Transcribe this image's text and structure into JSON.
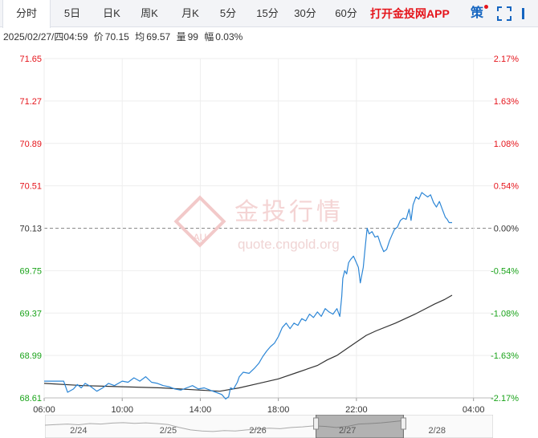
{
  "tabs": [
    {
      "label": "分时",
      "active": true
    },
    {
      "label": "5日",
      "active": false
    },
    {
      "label": "日K",
      "active": false
    },
    {
      "label": "周K",
      "active": false
    },
    {
      "label": "月K",
      "active": false
    },
    {
      "label": "5分",
      "active": false
    },
    {
      "label": "15分",
      "active": false
    },
    {
      "label": "30分",
      "active": false
    },
    {
      "label": "60分",
      "active": false
    }
  ],
  "app_link": "打开金投网APP",
  "strategy_label": "策",
  "info": {
    "datetime": "2025/02/27/四04:59",
    "price_label": "价",
    "price": "70.15",
    "avg_label": "均",
    "avg": "69.57",
    "volume_label": "量",
    "volume": "99",
    "change_label": "幅",
    "change": "0.03%"
  },
  "watermark": {
    "brand": "金投行情",
    "url": "quote.cngold.org",
    "logo_text": "AU"
  },
  "colors": {
    "up": "#e5141b",
    "down": "#1aa31a",
    "price_line": "#2c86d6",
    "avg_line": "#333333",
    "neutral": "#333333"
  },
  "chart_data": {
    "type": "line",
    "base_price": 70.13,
    "ylim": [
      68.61,
      71.65
    ],
    "y_ticks": [
      "71.65",
      "71.27",
      "70.89",
      "70.51",
      "70.13",
      "69.75",
      "69.37",
      "68.99",
      "68.61"
    ],
    "pct_ticks": [
      "2.17%",
      "1.63%",
      "1.08%",
      "0.54%",
      "0.00%",
      "-0.54%",
      "-1.08%",
      "-1.63%",
      "-2.17%"
    ],
    "x_ticks": [
      "06:00",
      "10:00",
      "14:00",
      "18:00",
      "22:00",
      "04:00"
    ],
    "x_tick_hours": [
      0,
      4,
      8,
      12,
      16,
      22
    ],
    "xlim_hours": [
      0,
      23
    ],
    "price_series": [
      [
        0.0,
        68.76
      ],
      [
        1.0,
        68.76
      ],
      [
        1.2,
        68.66
      ],
      [
        1.5,
        68.69
      ],
      [
        1.7,
        68.73
      ],
      [
        1.9,
        68.7
      ],
      [
        2.1,
        68.74
      ],
      [
        2.4,
        68.71
      ],
      [
        2.7,
        68.67
      ],
      [
        3.0,
        68.7
      ],
      [
        3.3,
        68.74
      ],
      [
        3.6,
        68.72
      ],
      [
        4.0,
        68.76
      ],
      [
        4.3,
        68.75
      ],
      [
        4.6,
        68.79
      ],
      [
        4.9,
        68.76
      ],
      [
        5.2,
        68.8
      ],
      [
        5.5,
        68.75
      ],
      [
        5.8,
        68.74
      ],
      [
        6.1,
        68.72
      ],
      [
        6.4,
        68.71
      ],
      [
        6.7,
        68.69
      ],
      [
        7.0,
        68.68
      ],
      [
        7.3,
        68.7
      ],
      [
        7.6,
        68.72
      ],
      [
        7.9,
        68.69
      ],
      [
        8.2,
        68.7
      ],
      [
        8.5,
        68.68
      ],
      [
        8.8,
        68.66
      ],
      [
        9.1,
        68.64
      ],
      [
        9.3,
        68.6
      ],
      [
        9.45,
        68.62
      ],
      [
        9.55,
        68.7
      ],
      [
        9.7,
        68.69
      ],
      [
        9.9,
        68.75
      ],
      [
        10.0,
        68.8
      ],
      [
        10.2,
        68.84
      ],
      [
        10.5,
        68.83
      ],
      [
        10.8,
        68.88
      ],
      [
        11.0,
        68.92
      ],
      [
        11.2,
        68.98
      ],
      [
        11.4,
        69.03
      ],
      [
        11.6,
        69.07
      ],
      [
        11.8,
        69.1
      ],
      [
        12.0,
        69.16
      ],
      [
        12.2,
        69.24
      ],
      [
        12.4,
        69.28
      ],
      [
        12.6,
        69.23
      ],
      [
        12.8,
        69.28
      ],
      [
        13.0,
        69.26
      ],
      [
        13.2,
        69.32
      ],
      [
        13.4,
        69.3
      ],
      [
        13.6,
        69.36
      ],
      [
        13.8,
        69.33
      ],
      [
        14.0,
        69.38
      ],
      [
        14.2,
        69.34
      ],
      [
        14.4,
        69.41
      ],
      [
        14.6,
        69.38
      ],
      [
        14.8,
        69.36
      ],
      [
        15.0,
        69.41
      ],
      [
        15.15,
        69.34
      ],
      [
        15.25,
        69.52
      ],
      [
        15.3,
        69.68
      ],
      [
        15.4,
        69.75
      ],
      [
        15.5,
        69.72
      ],
      [
        15.6,
        69.82
      ],
      [
        15.7,
        69.85
      ],
      [
        15.85,
        69.88
      ],
      [
        16.0,
        69.82
      ],
      [
        16.1,
        69.78
      ],
      [
        16.2,
        69.64
      ],
      [
        16.35,
        69.78
      ],
      [
        16.45,
        69.96
      ],
      [
        16.55,
        70.13
      ],
      [
        16.65,
        70.08
      ],
      [
        16.8,
        70.1
      ],
      [
        16.95,
        70.05
      ],
      [
        17.1,
        70.06
      ],
      [
        17.25,
        69.98
      ],
      [
        17.4,
        69.92
      ],
      [
        17.55,
        69.94
      ],
      [
        17.7,
        70.02
      ],
      [
        17.8,
        70.06
      ],
      [
        17.95,
        70.12
      ],
      [
        18.1,
        70.14
      ],
      [
        18.25,
        70.2
      ],
      [
        18.4,
        70.22
      ],
      [
        18.55,
        70.21
      ],
      [
        18.7,
        70.3
      ],
      [
        18.8,
        70.2
      ],
      [
        18.9,
        70.34
      ],
      [
        19.05,
        70.41
      ],
      [
        19.2,
        70.39
      ],
      [
        19.35,
        70.45
      ],
      [
        19.5,
        70.43
      ],
      [
        19.65,
        70.41
      ],
      [
        19.8,
        70.43
      ],
      [
        19.95,
        70.36
      ],
      [
        20.1,
        70.32
      ],
      [
        20.25,
        70.37
      ],
      [
        20.4,
        70.3
      ],
      [
        20.55,
        70.23
      ],
      [
        20.65,
        70.21
      ],
      [
        20.75,
        70.18
      ],
      [
        20.9,
        70.18
      ]
    ],
    "avg_series": [
      [
        0.0,
        68.74
      ],
      [
        2.0,
        68.72
      ],
      [
        4.0,
        68.71
      ],
      [
        6.0,
        68.7
      ],
      [
        8.0,
        68.68
      ],
      [
        9.0,
        68.67
      ],
      [
        10.0,
        68.7
      ],
      [
        11.0,
        68.74
      ],
      [
        12.0,
        68.78
      ],
      [
        13.0,
        68.84
      ],
      [
        14.0,
        68.9
      ],
      [
        14.5,
        68.95
      ],
      [
        15.0,
        68.99
      ],
      [
        15.5,
        69.05
      ],
      [
        16.0,
        69.11
      ],
      [
        16.5,
        69.17
      ],
      [
        17.0,
        69.21
      ],
      [
        18.0,
        69.28
      ],
      [
        19.0,
        69.36
      ],
      [
        20.0,
        69.45
      ],
      [
        20.5,
        69.49
      ],
      [
        20.9,
        69.53
      ]
    ],
    "navigator": {
      "labels": [
        "2/24",
        "2/25",
        "2/26",
        "2/27",
        "2/28"
      ],
      "label_hours": [
        1.5,
        5.5,
        9.5,
        13.5,
        17.5
      ],
      "selected_range_hours": [
        12.1,
        16.0
      ],
      "xlim_hours": [
        0,
        20
      ],
      "history": [
        [
          0,
          0.55
        ],
        [
          0.5,
          0.58
        ],
        [
          1,
          0.6
        ],
        [
          1.5,
          0.57
        ],
        [
          2,
          0.62
        ],
        [
          2.5,
          0.6
        ],
        [
          3,
          0.64
        ],
        [
          3.5,
          0.66
        ],
        [
          4,
          0.63
        ],
        [
          4.5,
          0.65
        ],
        [
          5,
          0.62
        ],
        [
          5.5,
          0.58
        ],
        [
          6,
          0.45
        ],
        [
          6.5,
          0.35
        ],
        [
          7,
          0.3
        ],
        [
          7.5,
          0.28
        ],
        [
          8,
          0.32
        ],
        [
          8.5,
          0.3
        ],
        [
          9,
          0.35
        ],
        [
          9.5,
          0.38
        ],
        [
          10,
          0.42
        ],
        [
          10.5,
          0.4
        ],
        [
          11,
          0.45
        ],
        [
          11.5,
          0.48
        ],
        [
          12,
          0.52
        ],
        [
          12.5,
          0.5
        ],
        [
          13,
          0.45
        ],
        [
          13.5,
          0.5
        ],
        [
          14,
          0.6
        ],
        [
          14.5,
          0.62
        ],
        [
          15,
          0.65
        ],
        [
          15.5,
          0.7
        ],
        [
          16,
          0.75
        ]
      ]
    }
  }
}
